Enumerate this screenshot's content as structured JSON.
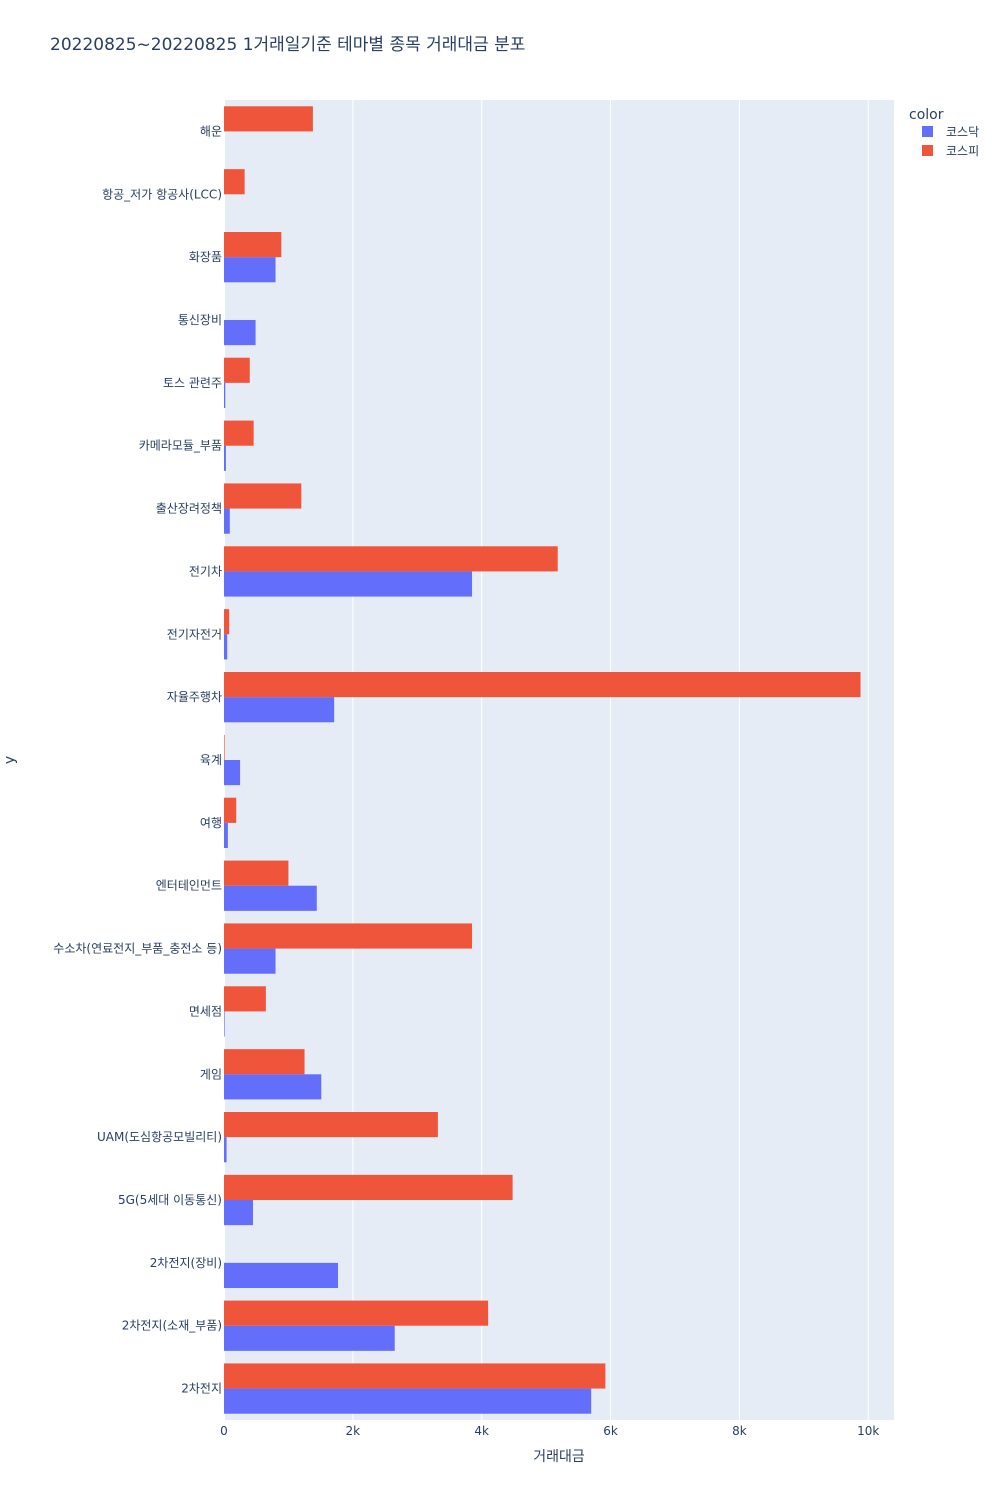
{
  "chart_data": {
    "type": "bar",
    "orientation": "horizontal",
    "barmode": "group",
    "title": "20220825~20220825 1거래일기준 테마별 종목 거래대금 분포",
    "xlabel": "거래대금",
    "ylabel": "y",
    "xlim": [
      0,
      10400
    ],
    "x_ticks": [
      0,
      2000,
      4000,
      6000,
      8000,
      10000
    ],
    "x_tick_labels": [
      "0",
      "2k",
      "4k",
      "6k",
      "8k",
      "10k"
    ],
    "grid": true,
    "legend": {
      "title": "color",
      "placement": "top-right"
    },
    "categories": [
      "2차전지",
      "2차전지(소재_부품)",
      "2차전지(장비)",
      "5G(5세대 이동통신)",
      "UAM(도심항공모빌리티)",
      "게임",
      "면세점",
      "수소차(연료전지_부품_충전소 등)",
      "엔터테인먼트",
      "여행",
      "육계",
      "자율주행차",
      "전기자전거",
      "전기차",
      "출산장려정책",
      "카메라모듈_부품",
      "토스 관련주",
      "통신장비",
      "화장품",
      "항공_저가 항공사(LCC)",
      "해운"
    ],
    "series": [
      {
        "name": "코스닥",
        "color": "#636efa",
        "values": [
          5700,
          2650,
          1770,
          450,
          40,
          1510,
          10,
          800,
          1440,
          60,
          250,
          1710,
          50,
          3850,
          90,
          30,
          20,
          490,
          800,
          0,
          0
        ]
      },
      {
        "name": "코스피",
        "color": "#ef553b",
        "values": [
          5920,
          4100,
          0,
          4480,
          3320,
          1250,
          650,
          3850,
          1000,
          190,
          10,
          9880,
          80,
          5180,
          1200,
          460,
          400,
          0,
          890,
          320,
          1380
        ]
      }
    ]
  },
  "colors": {
    "plot_bg": "#e5ecf6",
    "grid": "#ffffff",
    "text": "#2a3f5f"
  }
}
